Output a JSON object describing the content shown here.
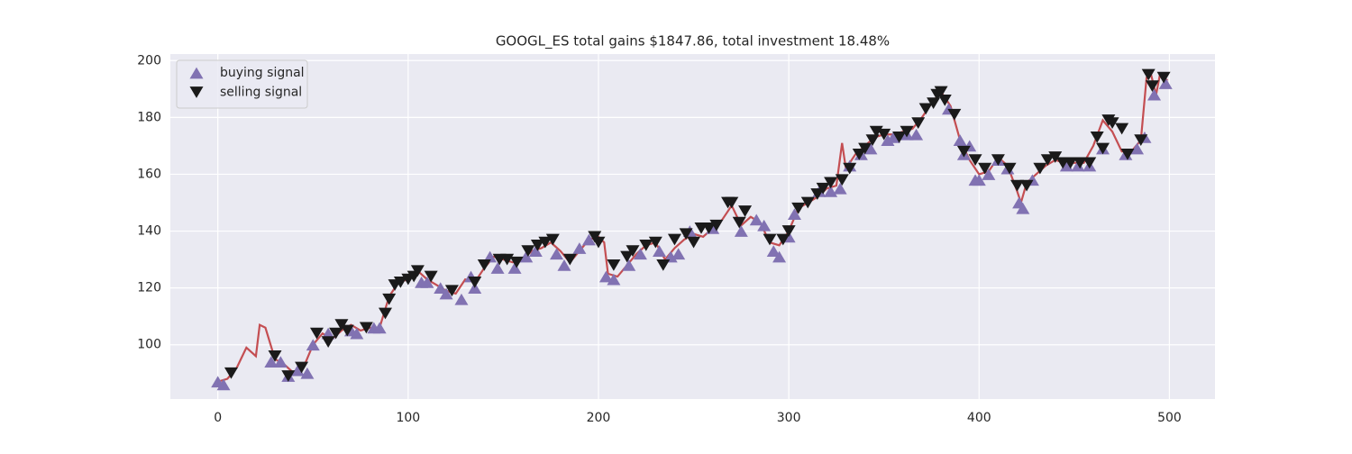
{
  "chart_data": {
    "type": "line",
    "title": "GOOGL_ES total gains $1847.86, total investment 18.48%",
    "x": [
      0,
      5,
      10,
      15,
      20,
      22,
      25,
      30,
      35,
      40,
      45,
      50,
      55,
      60,
      65,
      70,
      75,
      80,
      85,
      90,
      95,
      100,
      105,
      110,
      115,
      120,
      125,
      130,
      135,
      140,
      145,
      150,
      155,
      160,
      165,
      170,
      175,
      180,
      185,
      190,
      195,
      200,
      203,
      205,
      210,
      215,
      220,
      225,
      230,
      235,
      240,
      245,
      250,
      255,
      260,
      265,
      270,
      275,
      280,
      285,
      290,
      295,
      300,
      305,
      310,
      315,
      320,
      325,
      328,
      330,
      335,
      340,
      345,
      350,
      355,
      360,
      365,
      370,
      375,
      380,
      385,
      390,
      395,
      400,
      405,
      410,
      415,
      420,
      422,
      425,
      430,
      435,
      440,
      445,
      450,
      455,
      460,
      465,
      470,
      475,
      480,
      485,
      488,
      490,
      493,
      495,
      499
    ],
    "series": [
      {
        "color": "#c44e52",
        "values": [
          87,
          88,
          92,
          99,
          96,
          107,
          106,
          95,
          93,
          90,
          92,
          100,
          104,
          102,
          105,
          107,
          105,
          106,
          106,
          117,
          122,
          123,
          126,
          123,
          121,
          119,
          118,
          123,
          122,
          127,
          131,
          130,
          129,
          130,
          133,
          134,
          136,
          133,
          129,
          133,
          137,
          138,
          136,
          125,
          124,
          128,
          132,
          135,
          136,
          130,
          134,
          137,
          139,
          138,
          141,
          144,
          149,
          142,
          145,
          143,
          136,
          135,
          140,
          148,
          150,
          152,
          155,
          156,
          171,
          162,
          167,
          170,
          173,
          174,
          174,
          175,
          176,
          180,
          185,
          189,
          184,
          172,
          165,
          160,
          161,
          166,
          163,
          154,
          150,
          157,
          160,
          163,
          165,
          164,
          164,
          164,
          170,
          179,
          175,
          168,
          168,
          172,
          194,
          196,
          188,
          195,
          193
        ]
      },
      {
        "name": "buying signal",
        "type": "scatter",
        "marker": "^",
        "color": "#8172b2",
        "x": [
          0,
          3,
          28,
          33,
          37,
          42,
          47,
          50,
          58,
          70,
          73,
          82,
          85,
          107,
          110,
          117,
          120,
          128,
          133,
          135,
          143,
          147,
          156,
          162,
          167,
          178,
          182,
          190,
          195,
          204,
          208,
          216,
          222,
          232,
          238,
          242,
          248,
          260,
          275,
          283,
          287,
          292,
          295,
          300,
          303,
          316,
          322,
          327,
          332,
          338,
          343,
          352,
          355,
          362,
          367,
          384,
          390,
          392,
          395,
          398,
          400,
          405,
          410,
          415,
          421,
          423,
          428,
          446,
          452,
          458,
          465,
          477,
          483,
          487,
          492,
          498
        ],
        "values": [
          87,
          86,
          94,
          94,
          89,
          91,
          90,
          100,
          104,
          105,
          104,
          106,
          106,
          122,
          122,
          120,
          118,
          116,
          124,
          120,
          131,
          127,
          127,
          131,
          133,
          132,
          128,
          134,
          137,
          124,
          123,
          128,
          132,
          133,
          131,
          132,
          140,
          141,
          140,
          144,
          142,
          133,
          131,
          138,
          146,
          154,
          154,
          155,
          163,
          167,
          169,
          172,
          173,
          174,
          174,
          183,
          172,
          167,
          170,
          158,
          158,
          160,
          165,
          162,
          150,
          148,
          158,
          163,
          163,
          163,
          169,
          167,
          169,
          173,
          188,
          192
        ]
      },
      {
        "name": "selling signal",
        "type": "scatter",
        "marker": "v",
        "color": "#1a1a1a",
        "x": [
          7,
          30,
          37,
          44,
          52,
          58,
          62,
          65,
          68,
          78,
          88,
          90,
          93,
          96,
          100,
          103,
          105,
          112,
          123,
          135,
          140,
          148,
          152,
          157,
          163,
          168,
          172,
          176,
          185,
          198,
          200,
          208,
          215,
          218,
          225,
          230,
          234,
          240,
          246,
          250,
          254,
          258,
          262,
          268,
          270,
          274,
          277,
          290,
          297,
          300,
          305,
          310,
          315,
          318,
          322,
          328,
          332,
          337,
          340,
          344,
          346,
          350,
          358,
          362,
          368,
          372,
          376,
          378,
          380,
          382,
          387,
          392,
          398,
          403,
          410,
          416,
          420,
          425,
          432,
          436,
          440,
          444,
          448,
          453,
          458,
          462,
          465,
          468,
          470,
          475,
          478,
          485,
          489,
          491,
          497
        ],
        "values": [
          90,
          96,
          89,
          92,
          104,
          101,
          104,
          107,
          105,
          106,
          111,
          116,
          121,
          122,
          123,
          124,
          126,
          124,
          119,
          122,
          128,
          130,
          130,
          129,
          133,
          135,
          136,
          137,
          130,
          138,
          136,
          128,
          131,
          133,
          135,
          136,
          128,
          137,
          139,
          136,
          141,
          141,
          142,
          150,
          150,
          143,
          147,
          137,
          137,
          140,
          148,
          150,
          153,
          155,
          157,
          158,
          162,
          167,
          169,
          172,
          175,
          174,
          173,
          175,
          178,
          183,
          185,
          188,
          189,
          186,
          181,
          168,
          165,
          162,
          165,
          162,
          156,
          156,
          162,
          165,
          166,
          164,
          164,
          164,
          164,
          173,
          169,
          179,
          178,
          176,
          167,
          172,
          195,
          191,
          194
        ]
      }
    ],
    "xlim": [
      -24.95,
      523.95
    ],
    "ylim": [
      80.9,
      202.3
    ],
    "xticks": [
      0,
      100,
      200,
      300,
      400,
      500
    ],
    "yticks": [
      100,
      120,
      140,
      160,
      180,
      200
    ],
    "grid": true,
    "legend": "upper left"
  }
}
